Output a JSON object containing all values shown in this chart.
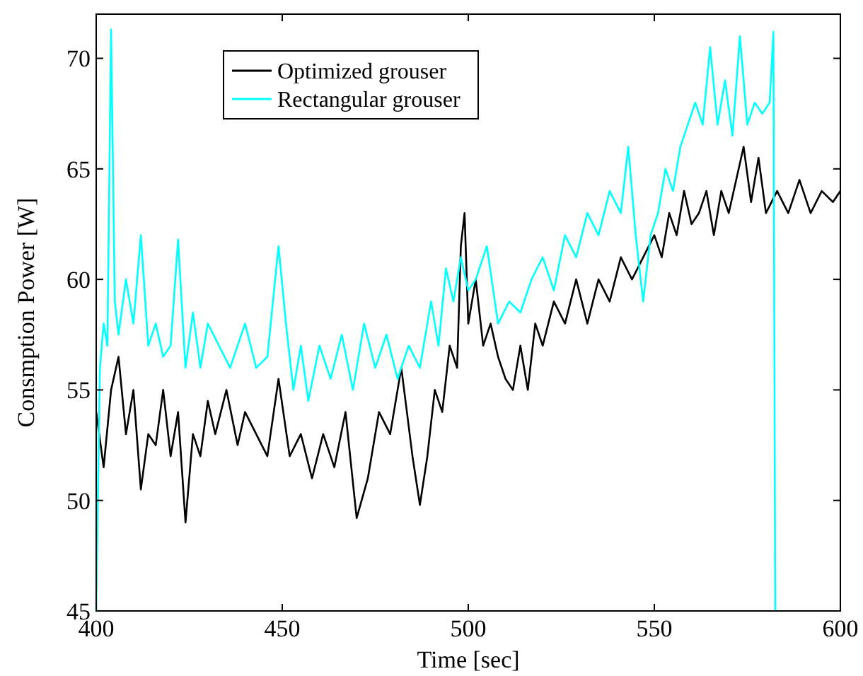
{
  "chart_data": {
    "type": "line",
    "xlabel": "Time [sec]",
    "ylabel": "Consmption Power [W]",
    "xlim": [
      400,
      600
    ],
    "ylim": [
      45,
      72
    ],
    "xticks": [
      400,
      450,
      500,
      550,
      600
    ],
    "yticks": [
      45,
      50,
      55,
      60,
      65,
      70
    ],
    "grid": false,
    "legend": "top left",
    "marker": "none",
    "line_style": "solid",
    "series": [
      {
        "name": "Optimized grouser",
        "color": "#000000",
        "x": [
          400,
          402,
          404,
          406,
          408,
          410,
          412,
          414,
          416,
          418,
          420,
          422,
          424,
          426,
          428,
          430,
          432,
          435,
          438,
          440,
          443,
          446,
          449,
          452,
          455,
          458,
          461,
          464,
          467,
          470,
          473,
          476,
          479,
          482,
          485,
          487,
          489,
          491,
          493,
          495,
          497,
          498,
          499,
          500,
          502,
          504,
          506,
          508,
          510,
          512,
          514,
          516,
          518,
          520,
          523,
          526,
          529,
          532,
          535,
          538,
          541,
          544,
          547,
          550,
          552,
          554,
          556,
          558,
          560,
          562,
          564,
          566,
          568,
          570,
          572,
          574,
          576,
          578,
          580,
          583,
          586,
          589,
          592,
          595,
          598,
          600
        ],
        "values": [
          54,
          51.5,
          55,
          56.5,
          53,
          55,
          50.5,
          53,
          52.5,
          55,
          52,
          54,
          49,
          53,
          52,
          54.5,
          53,
          55,
          52.5,
          54,
          53,
          52,
          55.5,
          52,
          53,
          51,
          53,
          51.5,
          54,
          49.2,
          51,
          54,
          53,
          56,
          52,
          49.8,
          52,
          55,
          54,
          57,
          56,
          61.5,
          63,
          58,
          60,
          57,
          58,
          56.5,
          55.5,
          55,
          57,
          55,
          58,
          57,
          59,
          58,
          60,
          58,
          60,
          59,
          61,
          60,
          61,
          62,
          61,
          63,
          62,
          64,
          62.5,
          63,
          64,
          62,
          64,
          63,
          64.5,
          66,
          63.5,
          65.5,
          63,
          64,
          63,
          64.5,
          63,
          64,
          63.5,
          64
        ]
      },
      {
        "name": "Rectangular grouser",
        "color": "#00ffff",
        "x": [
          400,
          401,
          402,
          403,
          404,
          405,
          406,
          408,
          410,
          412,
          414,
          416,
          418,
          420,
          422,
          424,
          426,
          428,
          430,
          433,
          436,
          440,
          443,
          446,
          449,
          451,
          453,
          455,
          457,
          460,
          463,
          466,
          469,
          472,
          475,
          478,
          481,
          484,
          487,
          490,
          492,
          494,
          496,
          498,
          500,
          502,
          505,
          508,
          511,
          514,
          517,
          520,
          523,
          526,
          529,
          532,
          535,
          538,
          541,
          543,
          545,
          547,
          549,
          551,
          553,
          555,
          557,
          559,
          561,
          563,
          565,
          567,
          569,
          571,
          573,
          575,
          577,
          579,
          581,
          582,
          582.5
        ],
        "values": [
          45,
          56,
          58,
          57,
          71.3,
          59,
          57.5,
          60,
          58,
          62,
          57,
          58,
          56.5,
          57,
          61.8,
          56,
          58.5,
          56,
          58,
          57,
          56,
          58,
          56,
          56.5,
          61.5,
          58,
          55,
          57,
          54.5,
          57,
          55.5,
          57.5,
          55,
          58,
          56,
          57.5,
          55.5,
          57,
          56,
          59,
          57,
          60.5,
          59,
          61,
          59.5,
          60,
          61.5,
          58,
          59,
          58.5,
          60,
          61,
          59.5,
          62,
          61,
          63,
          62,
          64,
          63,
          66,
          62,
          59,
          62,
          63,
          65,
          64,
          66,
          67,
          68,
          67,
          70.5,
          67,
          69,
          66.5,
          71,
          67,
          68,
          67.5,
          68,
          71.2,
          45
        ]
      }
    ]
  }
}
